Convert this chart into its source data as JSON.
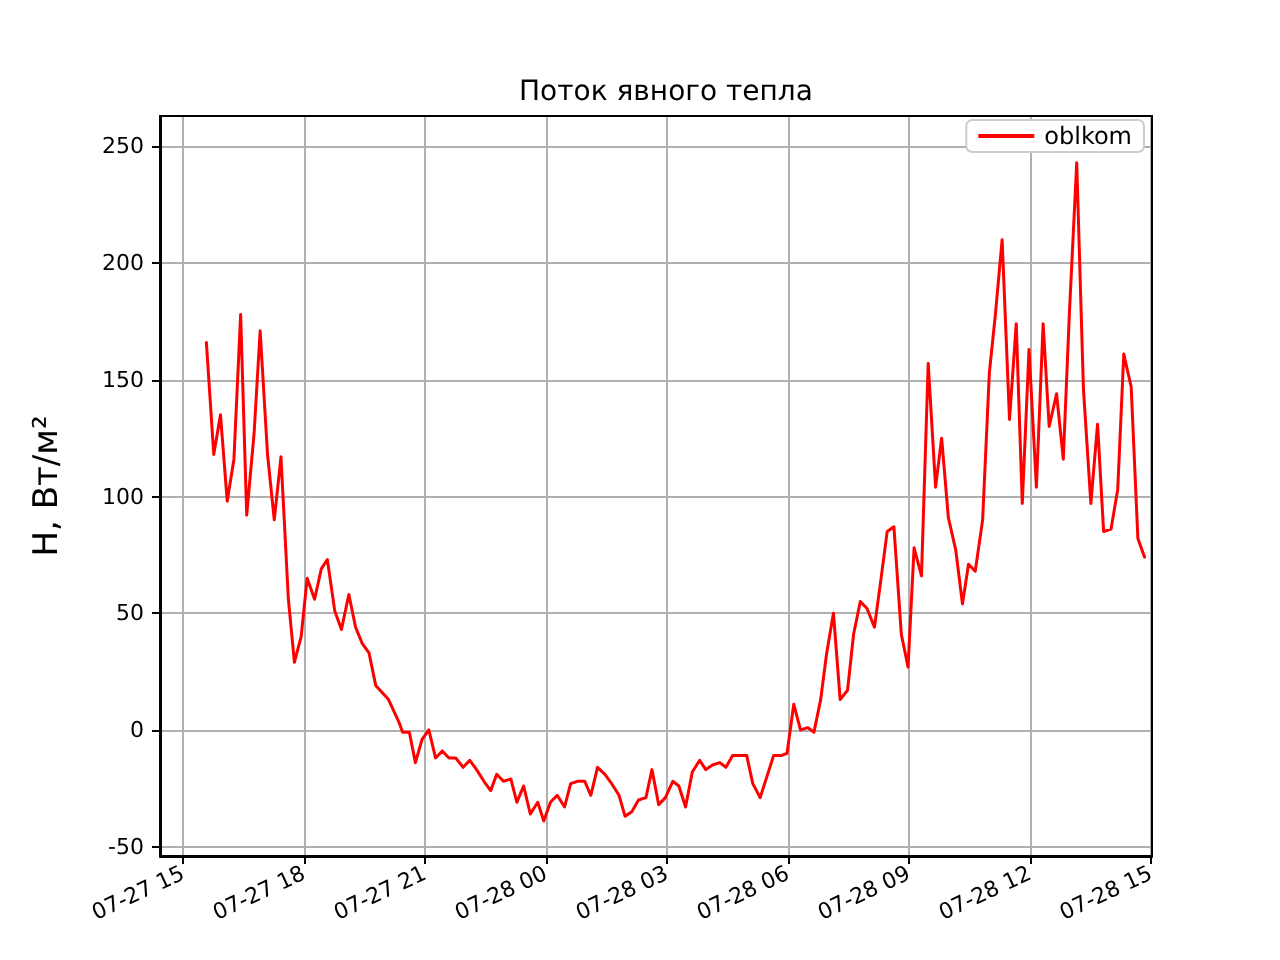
{
  "chart_data": {
    "type": "line",
    "title": "Поток явного тепла",
    "ylabel": "H, Вт/м²",
    "legend": "top right",
    "grid": true,
    "xlim": [
      "--07-27T14:26",
      "--07-28T15:02"
    ],
    "ylim": [
      -54,
      263
    ],
    "xticks": [
      {
        "value": "--07-27T15:00",
        "label": "07-27 15"
      },
      {
        "value": "--07-27T18:00",
        "label": "07-27 18"
      },
      {
        "value": "--07-27T21:00",
        "label": "07-27 21"
      },
      {
        "value": "--07-28T00:00",
        "label": "07-28 00"
      },
      {
        "value": "--07-28T03:00",
        "label": "07-28 03"
      },
      {
        "value": "--07-28T06:00",
        "label": "07-28 06"
      },
      {
        "value": "--07-28T09:00",
        "label": "07-28 09"
      },
      {
        "value": "--07-28T12:00",
        "label": "07-28 12"
      },
      {
        "value": "--07-28T15:00",
        "label": "07-28 15"
      }
    ],
    "yticks": [
      -50,
      0,
      50,
      100,
      150,
      200,
      250
    ],
    "series": [
      {
        "name": "oblkom",
        "color": "#ff0000",
        "x": [
          "--07-27T15:35",
          "--07-27T15:46",
          "--07-27T15:56",
          "--07-27T16:06",
          "--07-27T16:16",
          "--07-27T16:26",
          "--07-27T16:35",
          "--07-27T16:46",
          "--07-27T16:55",
          "--07-27T17:06",
          "--07-27T17:16",
          "--07-27T17:26",
          "--07-27T17:37",
          "--07-27T17:46",
          "--07-27T17:56",
          "--07-27T18:05",
          "--07-27T18:16",
          "--07-27T18:26",
          "--07-27T18:35",
          "--07-27T18:46",
          "--07-27T18:56",
          "--07-27T19:07",
          "--07-27T19:17",
          "--07-27T19:27",
          "--07-27T19:37",
          "--07-27T19:47",
          "--07-27T20:06",
          "--07-27T20:22",
          "--07-27T20:27",
          "--07-27T20:37",
          "--07-27T20:46",
          "--07-27T20:56",
          "--07-27T21:06",
          "--07-27T21:16",
          "--07-27T21:26",
          "--07-27T21:36",
          "--07-27T21:46",
          "--07-27T21:57",
          "--07-27T22:07",
          "--07-27T22:17",
          "--07-27T22:28",
          "--07-27T22:38",
          "--07-27T22:47",
          "--07-27T22:57",
          "--07-27T23:08",
          "--07-27T23:17",
          "--07-27T23:27",
          "--07-27T23:37",
          "--07-27T23:48",
          "--07-27T23:57",
          "--07-28T00:07",
          "--07-28T00:17",
          "--07-28T00:28",
          "--07-28T00:37",
          "--07-28T00:47",
          "--07-28T00:58",
          "--07-28T01:07",
          "--07-28T01:17",
          "--07-28T01:28",
          "--07-28T01:38",
          "--07-28T01:49",
          "--07-28T01:58",
          "--07-28T02:08",
          "--07-28T02:18",
          "--07-28T02:29",
          "--07-28T02:38",
          "--07-28T02:48",
          "--07-28T02:58",
          "--07-28T03:09",
          "--07-28T03:18",
          "--07-28T03:28",
          "--07-28T03:38",
          "--07-28T03:49",
          "--07-28T03:58",
          "--07-28T04:08",
          "--07-28T04:19",
          "--07-28T04:28",
          "--07-28T04:38",
          "--07-28T04:49",
          "--07-28T04:59",
          "--07-28T05:08",
          "--07-28T05:19",
          "--07-28T05:29",
          "--07-28T05:39",
          "--07-28T05:50",
          "--07-28T05:59",
          "--07-28T06:09",
          "--07-28T06:19",
          "--07-28T06:30",
          "--07-28T06:39",
          "--07-28T06:49",
          "--07-28T06:58",
          "--07-28T07:08",
          "--07-28T07:18",
          "--07-28T07:29",
          "--07-28T07:38",
          "--07-28T07:48",
          "--07-28T07:58",
          "--07-28T08:09",
          "--07-28T08:18",
          "--07-28T08:28",
          "--07-28T08:38",
          "--07-28T08:49",
          "--07-28T08:59",
          "--07-28T09:08",
          "--07-28T09:19",
          "--07-28T09:29",
          "--07-28T09:40",
          "--07-28T09:49",
          "--07-28T09:59",
          "--07-28T10:10",
          "--07-28T10:20",
          "--07-28T10:29",
          "--07-28T10:39",
          "--07-28T10:50",
          "--07-28T11:00",
          "--07-28T11:09",
          "--07-28T11:19",
          "--07-28T11:30",
          "--07-28T11:40",
          "--07-28T11:49",
          "--07-28T11:59",
          "--07-28T12:10",
          "--07-28T12:20",
          "--07-28T12:29",
          "--07-28T12:40",
          "--07-28T12:50",
          "--07-28T12:59",
          "--07-28T13:10",
          "--07-28T13:20",
          "--07-28T13:31",
          "--07-28T13:41",
          "--07-28T13:50",
          "--07-28T14:01",
          "--07-28T14:11",
          "--07-28T14:20",
          "--07-28T14:31",
          "--07-28T14:41",
          "--07-28T14:51"
        ],
        "values": [
          166,
          118,
          135,
          98,
          116,
          178,
          92,
          127,
          171,
          118,
          90,
          117,
          56,
          29,
          40,
          65,
          56,
          69,
          73,
          51,
          43,
          58,
          44,
          37,
          33,
          19,
          13,
          3,
          -1,
          -1,
          -14,
          -4,
          0,
          -12,
          -9,
          -12,
          -12,
          -16,
          -13,
          -17,
          -22,
          -26,
          -19,
          -22,
          -21,
          -31,
          -24,
          -36,
          -31,
          -39,
          -31,
          -28,
          -33,
          -23,
          -22,
          -22,
          -28,
          -16,
          -19,
          -23,
          -28,
          -37,
          -35,
          -30,
          -29,
          -17,
          -32,
          -29,
          -22,
          -24,
          -33,
          -18,
          -13,
          -17,
          -15,
          -14,
          -16,
          -11,
          -11,
          -11,
          -23,
          -29,
          -20,
          -11,
          -11,
          -10,
          11,
          0,
          1,
          -1,
          13,
          33,
          50,
          13,
          17,
          41,
          55,
          52,
          44,
          63,
          85,
          87,
          41,
          27,
          78,
          66,
          157,
          104,
          125,
          91,
          77,
          54,
          71,
          68,
          90,
          153,
          178,
          210,
          133,
          174,
          97,
          163,
          104,
          174,
          130,
          144,
          116,
          178,
          243,
          146,
          97,
          131,
          85,
          86,
          103,
          161,
          147,
          82,
          74
        ]
      }
    ]
  }
}
